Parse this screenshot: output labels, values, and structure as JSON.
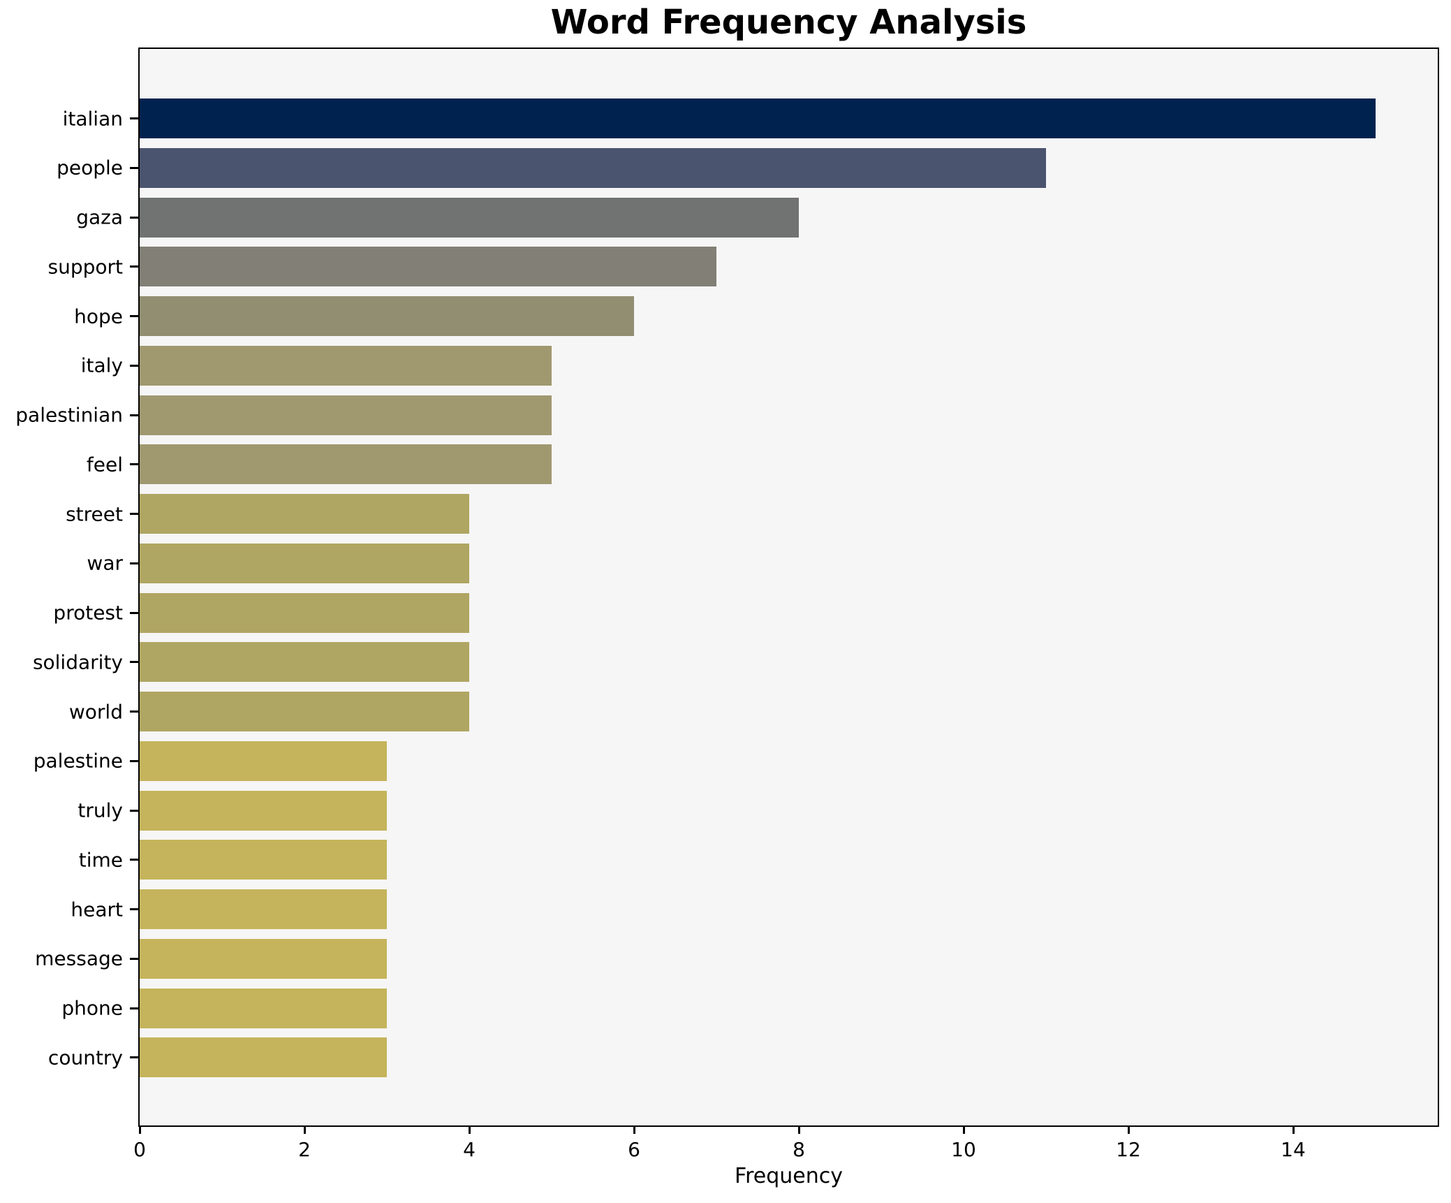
{
  "chart_data": {
    "type": "bar",
    "orientation": "horizontal",
    "title": "Word Frequency Analysis",
    "xlabel": "Frequency",
    "ylabel": "",
    "categories": [
      "italian",
      "people",
      "gaza",
      "support",
      "hope",
      "italy",
      "palestinian",
      "feel",
      "street",
      "war",
      "protest",
      "solidarity",
      "world",
      "palestine",
      "truly",
      "time",
      "heart",
      "message",
      "phone",
      "country"
    ],
    "values": [
      15,
      11,
      8,
      7,
      6,
      5,
      5,
      5,
      4,
      4,
      4,
      4,
      4,
      3,
      3,
      3,
      3,
      3,
      3,
      3
    ],
    "bar_colors": [
      "#00224e",
      "#4a546e",
      "#717372",
      "#827f76",
      "#928e72",
      "#a09970",
      "#a09970",
      "#a09970",
      "#b0a663",
      "#b0a663",
      "#b0a663",
      "#b0a663",
      "#b0a663",
      "#c5b45c",
      "#c5b45c",
      "#c5b45c",
      "#c5b45c",
      "#c5b45c",
      "#c5b45c",
      "#c5b45c"
    ],
    "x_ticks": [
      0,
      2,
      4,
      6,
      8,
      10,
      12,
      14
    ],
    "xlim": [
      0,
      15.75
    ],
    "grid": false,
    "legend": "none",
    "plot_background": "#f6f6f7",
    "figure_background": "#ffffff",
    "frame_color": "#000000"
  }
}
